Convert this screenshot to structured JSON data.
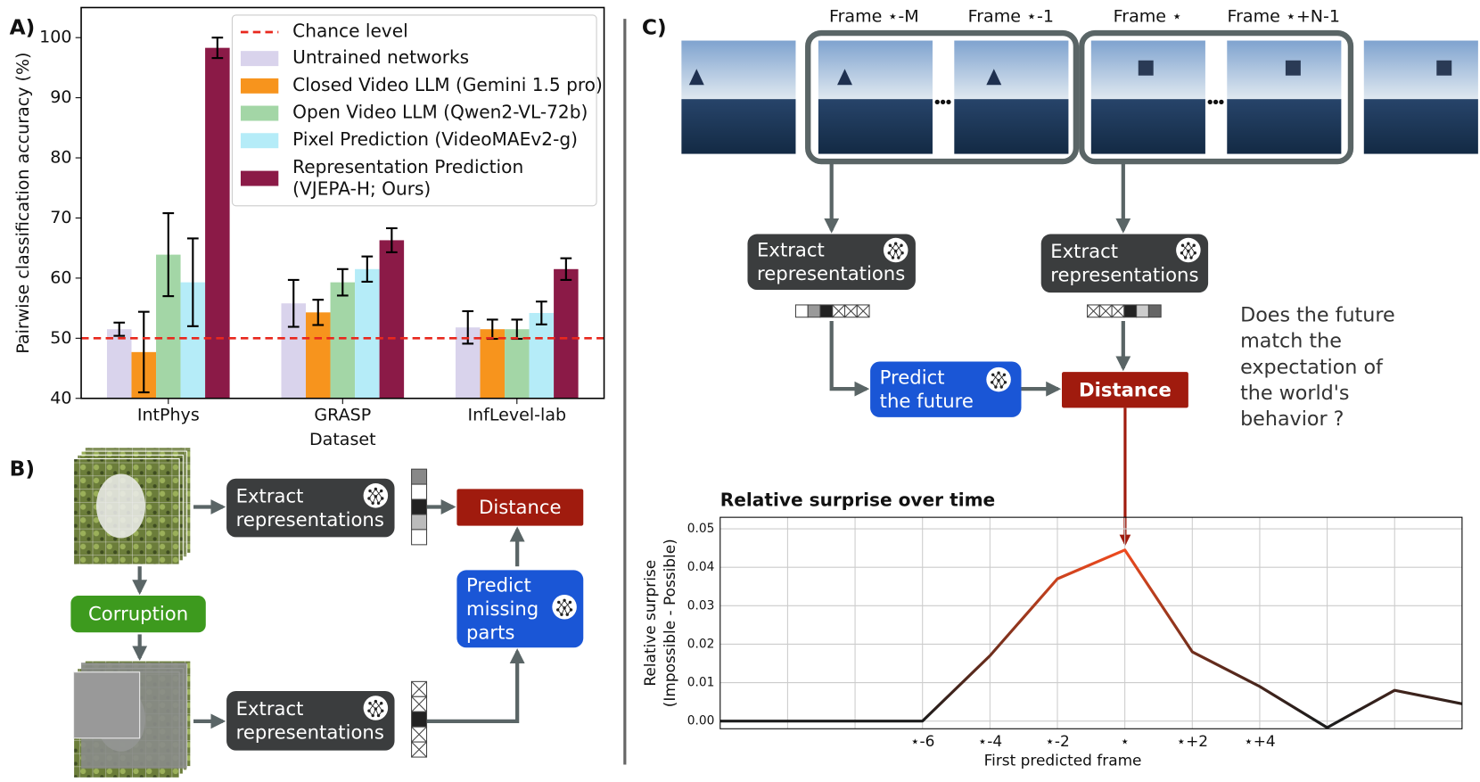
{
  "panel_labels": [
    "A)",
    "B)",
    "C)"
  ],
  "chart_data": [
    {
      "type": "bar",
      "ylabel": "Pairwise classification accuracy (%)",
      "xlabel": "Dataset",
      "categories": [
        "IntPhys",
        "GRASP",
        "InfLevel-lab"
      ],
      "ylim": [
        40,
        105
      ],
      "yticks": [
        40,
        50,
        60,
        70,
        80,
        90,
        100
      ],
      "legend": "upper right",
      "chance_level": {
        "name": "Chance level",
        "value": 50,
        "color": "#e8281e"
      },
      "series": [
        {
          "name": "Untrained networks",
          "color": "#d9d3ec",
          "values": [
            51.5,
            55.8,
            51.8
          ],
          "errors": [
            1.1,
            3.9,
            2.7
          ]
        },
        {
          "name": "Closed Video LLM (Gemini 1.5 pro)",
          "color": "#f7941d",
          "values": [
            47.7,
            54.3,
            51.5
          ],
          "errors": [
            6.7,
            2.1,
            1.6
          ]
        },
        {
          "name": "Open Video LLM (Qwen2-VL-72b)",
          "color": "#a3d6a6",
          "values": [
            63.9,
            59.3,
            51.5
          ],
          "errors": [
            6.9,
            2.2,
            1.6
          ]
        },
        {
          "name": "Pixel Prediction (VideoMAEv2-g)",
          "color": "#b5ecf8",
          "values": [
            59.3,
            61.5,
            54.2
          ],
          "errors": [
            7.3,
            2.1,
            1.9
          ]
        },
        {
          "name": "Representation Prediction\n(VJEPA-H; Ours)",
          "color": "#8b1a47",
          "values": [
            98.3,
            66.3,
            61.5
          ],
          "errors": [
            1.7,
            2.0,
            1.8
          ]
        }
      ]
    },
    {
      "type": "line",
      "title": "Relative surprise over time",
      "xlabel": "First predicted frame",
      "ylabel": "Relative surprise\n(Impossible - Possible)",
      "x": [
        -12,
        -10,
        -8,
        -6,
        -4,
        -2,
        0,
        2,
        4,
        6,
        8,
        10
      ],
      "values": [
        0,
        0,
        0,
        0,
        0.017,
        0.037,
        0.0445,
        0.018,
        0.009,
        -0.0017,
        0.008,
        0.0045
      ],
      "colors": [
        "#1c1c1c",
        "#ef4a1e"
      ],
      "xlim": [
        -12,
        10
      ],
      "ylim": [
        -0.002,
        0.053
      ],
      "xticks": [
        {
          "value": -6,
          "label": "⋆-6"
        },
        {
          "value": -4,
          "label": "⋆-4"
        },
        {
          "value": -2,
          "label": "⋆-2"
        },
        {
          "value": 0,
          "label": "⋆"
        },
        {
          "value": 2,
          "label": "⋆+2"
        },
        {
          "value": 4,
          "label": "⋆+4"
        }
      ],
      "minor_xticks": [
        -10,
        -8,
        6,
        8
      ],
      "yticks": [
        {
          "value": 0,
          "label": "0.00"
        },
        0.01,
        0.02,
        0.03,
        0.04,
        0.05
      ],
      "grid": true
    }
  ],
  "diagram_b": {
    "extract_top": "Extract\nrepresentations",
    "extract_bottom": "Extract\nrepresentations",
    "distance": "Distance",
    "corruption": "Corruption",
    "predict": "Predict\nmissing\nparts"
  },
  "diagram_c": {
    "frames": [
      "Frame ⋆-M",
      "Frame ⋆-1",
      "Frame ⋆",
      "Frame ⋆+N-1"
    ],
    "extract_left": "Extract\nrepresentations",
    "extract_right": "Extract\nrepresentations",
    "predict": "Predict\nthe future",
    "distance": "Distance",
    "question": "Does the future\nmatch the\nexpectation of\nthe world's\nbehavior ?"
  }
}
